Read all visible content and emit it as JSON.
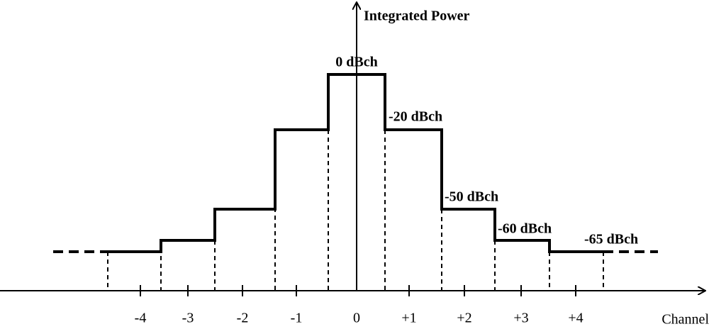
{
  "y_axis": {
    "title": "Integrated Power"
  },
  "x_axis": {
    "title": "Channel",
    "ticks": [
      "-4",
      "-3",
      "-2",
      "-1",
      "0",
      "+1",
      "+2",
      "+3",
      "+4"
    ]
  },
  "levels": [
    "0 dBch",
    "-20 dBch",
    "-50 dBch",
    "-60 dBch",
    "-65 dBch"
  ]
}
